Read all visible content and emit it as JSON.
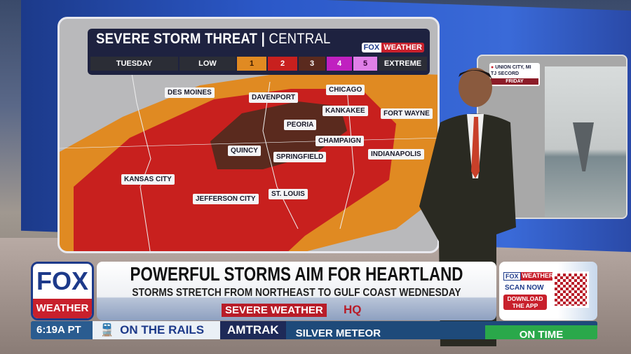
{
  "map": {
    "title": "SEVERE STORM THREAT",
    "region": "CENTRAL",
    "day": "TUESDAY",
    "scale": [
      {
        "label": "LOW",
        "color": "#2b2d36"
      },
      {
        "label": "1",
        "color": "#e08a22"
      },
      {
        "label": "2",
        "color": "#c8201e"
      },
      {
        "label": "3",
        "color": "#5a2a1e"
      },
      {
        "label": "4",
        "color": "#c020c0"
      },
      {
        "label": "5",
        "color": "#e080e8"
      },
      {
        "label": "EXTREME",
        "color": "#2b2d36"
      }
    ],
    "logo": {
      "fox": "FOX",
      "weather": "WEATHER"
    },
    "cities": [
      "DES MOINES",
      "DAVENPORT",
      "CHICAGO",
      "KANKAKEE",
      "FORT WAYNE",
      "PEORIA",
      "CHAMPAIGN",
      "QUINCY",
      "SPRINGFIELD",
      "INDIANAPOLIS",
      "KANSAS CITY",
      "JEFFERSON CITY",
      "ST. LOUIS"
    ]
  },
  "side_screen": {
    "location": "UNION CITY, MI",
    "credit": "TJ SECORD",
    "day": "FRIDAY"
  },
  "lower_third": {
    "logo_fox": "FOX",
    "logo_weather": "WEATHER",
    "headline": "POWERFUL STORMS AIM FOR HEARTLAND",
    "subhead": "STORMS STRETCH FROM NORTHEAST TO GULF COAST WEDNESDAY",
    "segment": "SEVERE WEATHER",
    "segment_suffix": "HQ",
    "app": {
      "fox": "FOX",
      "weather": "WEATHER",
      "scan": "SCAN NOW",
      "download": "DOWNLOAD THE APP"
    }
  },
  "ticker": {
    "time": "6:19A PT",
    "category": "ON THE RAILS",
    "source": "AMTRAK",
    "item": "SILVER METEOR",
    "status": "ON TIME"
  },
  "colors": {
    "fox_blue": "#1d3a8a",
    "fox_red": "#c8202c"
  }
}
